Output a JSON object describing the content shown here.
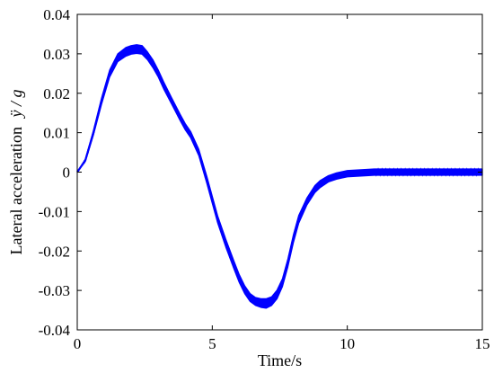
{
  "chart_data": {
    "type": "line",
    "title": "",
    "xlabel": "Time/s",
    "ylabel": "Lateral acceleration",
    "ylabel_symbol": "ÿ / g",
    "xlim": [
      0,
      15
    ],
    "ylim": [
      -0.04,
      0.04
    ],
    "xticks": [
      0,
      5,
      10,
      15
    ],
    "xtick_labels": [
      "0",
      "5",
      "10",
      "15"
    ],
    "yticks": [
      -0.04,
      -0.03,
      -0.02,
      -0.01,
      0,
      0.01,
      0.02,
      0.03,
      0.04
    ],
    "ytick_labels": [
      "-0.04",
      "-0.03",
      "-0.02",
      "-0.01",
      "0",
      "0.01",
      "0.02",
      "0.03",
      "0.04"
    ],
    "grid": false,
    "series": [
      {
        "color": "#0000ff",
        "x": [
          0,
          0.3,
          0.6,
          0.9,
          1.2,
          1.5,
          1.8,
          2.0,
          2.2,
          2.4,
          2.6,
          2.8,
          3.0,
          3.2,
          3.5,
          3.8,
          4.0,
          4.2,
          4.5,
          4.8,
          5.0,
          5.2,
          5.5,
          5.8,
          6.0,
          6.2,
          6.4,
          6.6,
          6.8,
          7.0,
          7.2,
          7.4,
          7.6,
          7.8,
          8.0,
          8.2,
          8.5,
          8.8,
          9.0,
          9.3,
          9.6,
          10.0,
          10.5,
          11.0,
          12.0,
          13.0,
          14.0,
          15.0
        ],
        "y": [
          0.0,
          0.003,
          0.01,
          0.018,
          0.025,
          0.029,
          0.0305,
          0.031,
          0.0312,
          0.031,
          0.0295,
          0.0275,
          0.025,
          0.022,
          0.018,
          0.014,
          0.0115,
          0.0095,
          0.005,
          -0.002,
          -0.007,
          -0.012,
          -0.018,
          -0.0235,
          -0.027,
          -0.0298,
          -0.0318,
          -0.0328,
          -0.0332,
          -0.0333,
          -0.0327,
          -0.031,
          -0.028,
          -0.023,
          -0.017,
          -0.012,
          -0.0075,
          -0.0043,
          -0.003,
          -0.0017,
          -0.001,
          -0.0004,
          -0.0002,
          0.0,
          0.0,
          0.0,
          0.0,
          0.0
        ],
        "band_halfwidth": [
          0.0,
          0.0003,
          0.0006,
          0.0008,
          0.0009,
          0.001,
          0.0011,
          0.0011,
          0.0011,
          0.0011,
          0.001,
          0.001,
          0.0009,
          0.0009,
          0.0008,
          0.0008,
          0.0008,
          0.0008,
          0.0008,
          0.0009,
          0.0009,
          0.0009,
          0.001,
          0.001,
          0.001,
          0.001,
          0.001,
          0.001,
          0.0011,
          0.0012,
          0.0011,
          0.0011,
          0.001,
          0.001,
          0.001,
          0.001,
          0.0009,
          0.0009,
          0.0009,
          0.0008,
          0.0008,
          0.0008,
          0.0008,
          0.0008,
          0.0008,
          0.0008,
          0.0008,
          0.0008
        ]
      }
    ]
  }
}
